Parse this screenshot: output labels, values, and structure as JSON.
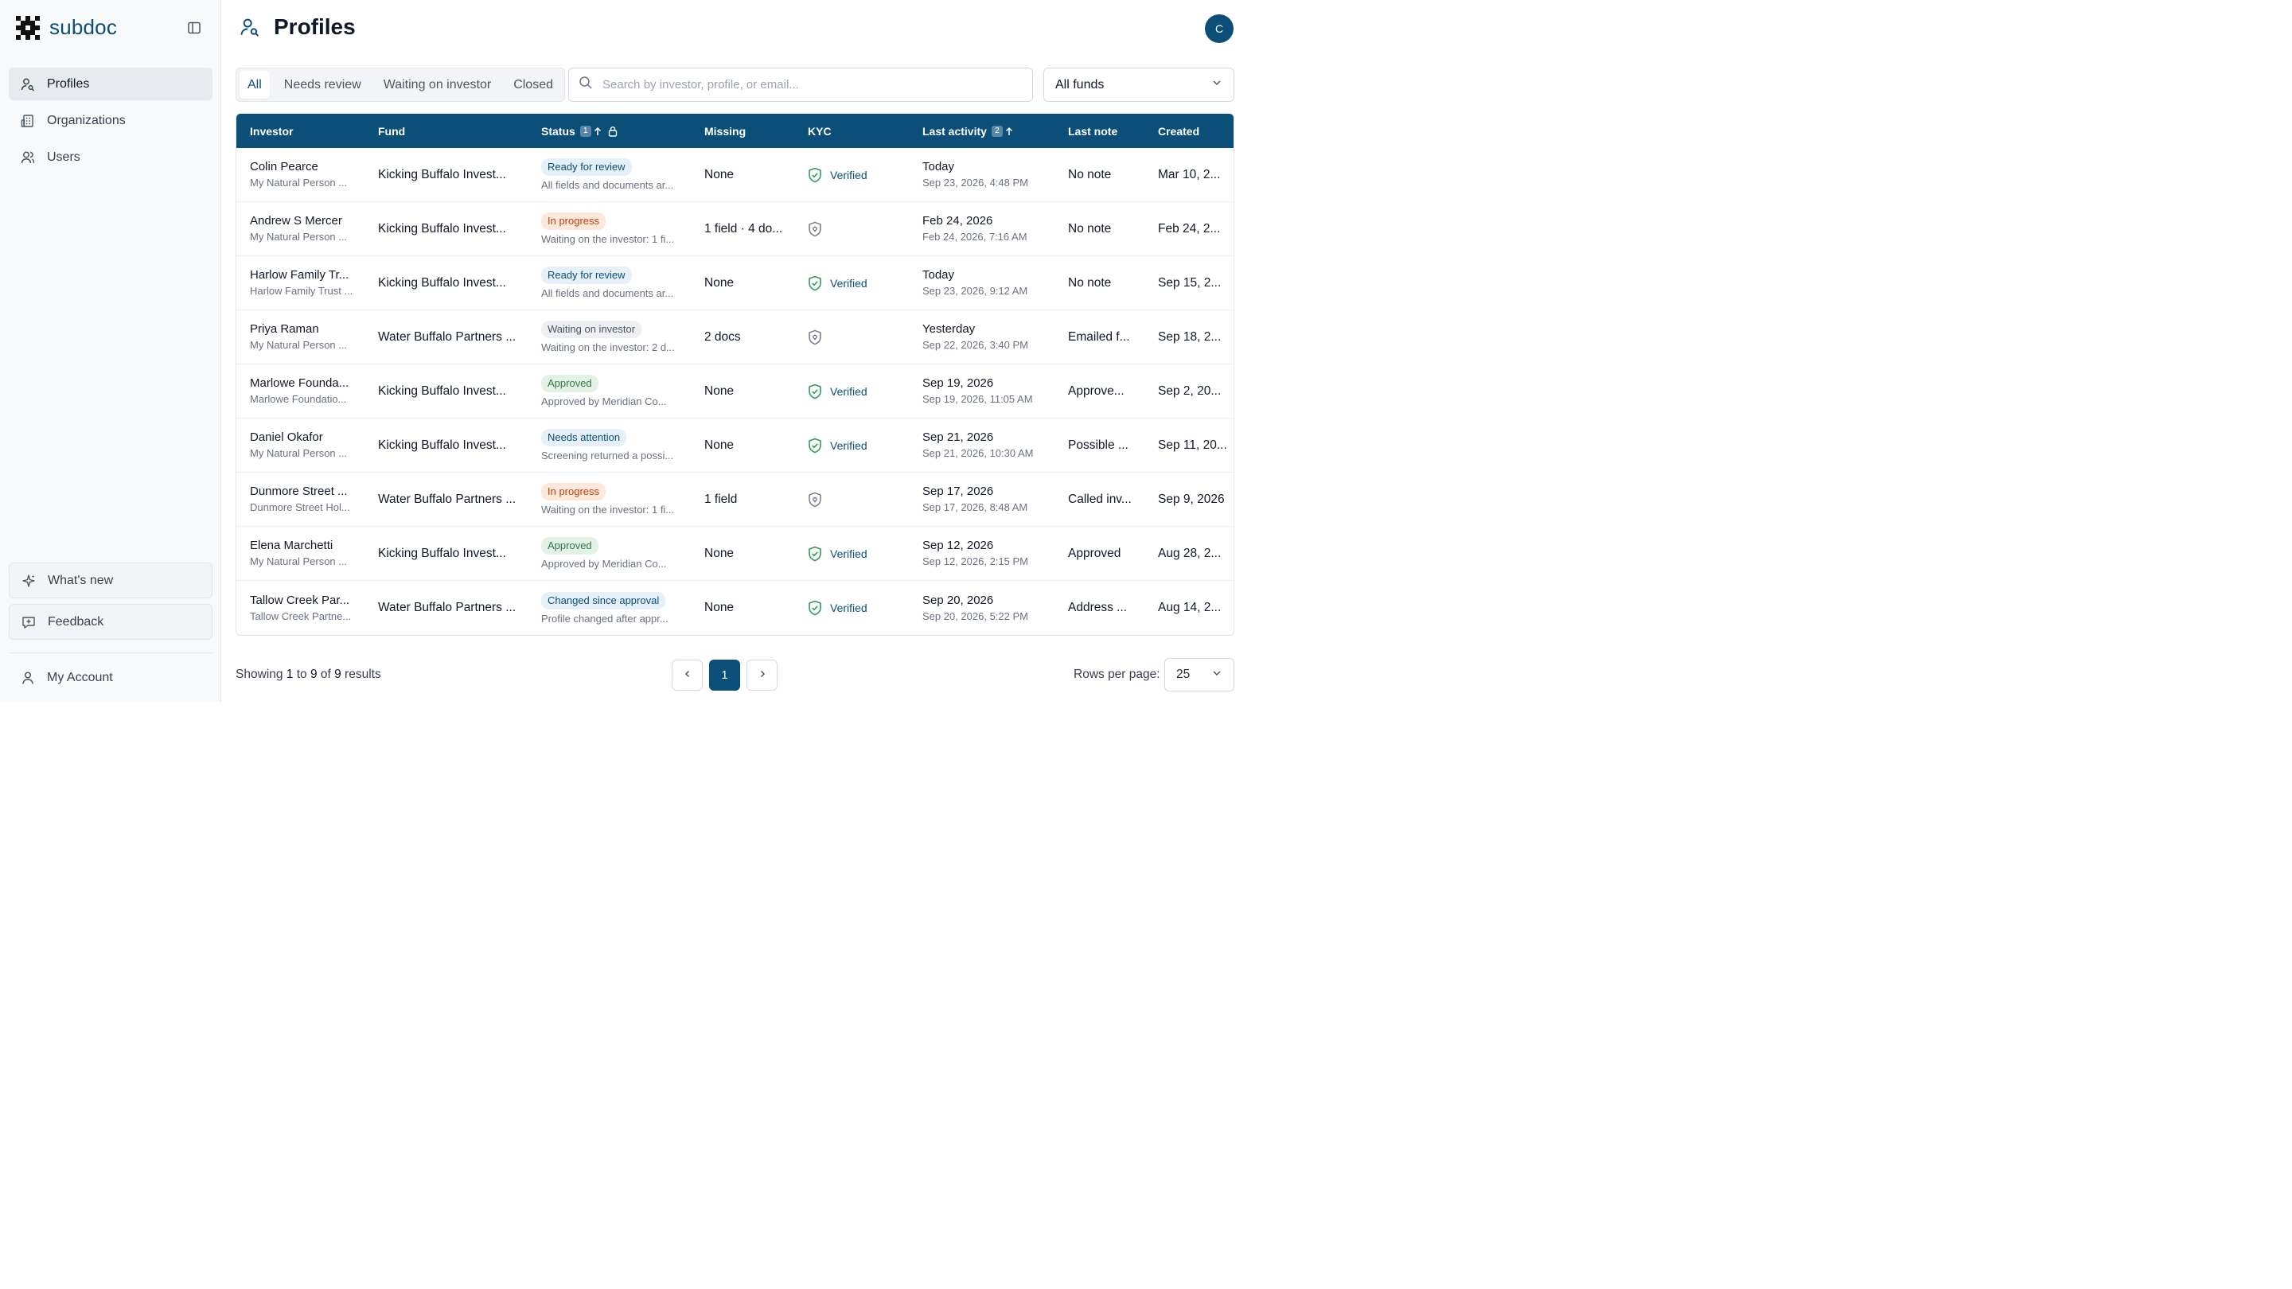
{
  "app": {
    "name": "subdoc"
  },
  "sidebar": {
    "items": [
      {
        "label": "Profiles",
        "icon": "profiles-icon",
        "active": true
      },
      {
        "label": "Organizations",
        "icon": "building-icon",
        "active": false
      },
      {
        "label": "Users",
        "icon": "users-icon",
        "active": false
      }
    ],
    "whats_new": "What's new",
    "feedback": "Feedback",
    "account": "My Account"
  },
  "header": {
    "title": "Profiles",
    "avatar_initial": "C"
  },
  "tabs": [
    {
      "label": "All",
      "active": true
    },
    {
      "label": "Needs review",
      "active": false
    },
    {
      "label": "Waiting on investor",
      "active": false
    },
    {
      "label": "Closed",
      "active": false
    }
  ],
  "search": {
    "placeholder": "Search by investor, profile, or email..."
  },
  "fund_filter": {
    "value": "All funds"
  },
  "table": {
    "columns": {
      "investor": "Investor",
      "fund": "Fund",
      "status": "Status",
      "status_sort": "1",
      "missing": "Missing",
      "kyc": "KYC",
      "last_activity": "Last activity",
      "last_activity_sort": "2",
      "last_note": "Last note",
      "created": "Created"
    },
    "rows": [
      {
        "investor": "Colin Pearce",
        "profile": "My Natural Person ...",
        "fund": "Kicking Buffalo Invest...",
        "status": "Ready for review",
        "status_color": "blue",
        "status_sub": "All fields and documents ar...",
        "missing": "None",
        "kyc_verified": true,
        "kyc": "Verified",
        "activity": "Today",
        "activity_sub": "Sep 23, 2026, 4:48 PM",
        "note": "No note",
        "created": "Mar 10, 2..."
      },
      {
        "investor": "Andrew S Mercer",
        "profile": "My Natural Person ...",
        "fund": "Kicking Buffalo Invest...",
        "status": "In progress",
        "status_color": "orange",
        "status_sub": "Waiting on the investor: 1 fi...",
        "missing": "1 field · 4 do...",
        "kyc_verified": false,
        "kyc": "",
        "activity": "Feb 24, 2026",
        "activity_sub": "Feb 24, 2026, 7:16 AM",
        "note": "No note",
        "created": "Feb 24, 2..."
      },
      {
        "investor": "Harlow Family Tr...",
        "profile": "Harlow Family Trust ...",
        "fund": "Kicking Buffalo Invest...",
        "status": "Ready for review",
        "status_color": "blue",
        "status_sub": "All fields and documents ar...",
        "missing": "None",
        "kyc_verified": true,
        "kyc": "Verified",
        "activity": "Today",
        "activity_sub": "Sep 23, 2026, 9:12 AM",
        "note": "No note",
        "created": "Sep 15, 2..."
      },
      {
        "investor": "Priya Raman",
        "profile": "My Natural Person ...",
        "fund": "Water Buffalo Partners ...",
        "status": "Waiting on investor",
        "status_color": "gray",
        "status_sub": "Waiting on the investor: 2 d...",
        "missing": "2 docs",
        "kyc_verified": false,
        "kyc": "",
        "activity": "Yesterday",
        "activity_sub": "Sep 22, 2026, 3:40 PM",
        "note": "Emailed f...",
        "created": "Sep 18, 2..."
      },
      {
        "investor": "Marlowe Founda...",
        "profile": "Marlowe Foundatio...",
        "fund": "Kicking Buffalo Invest...",
        "status": "Approved",
        "status_color": "green",
        "status_sub": "Approved by Meridian Co...",
        "missing": "None",
        "kyc_verified": true,
        "kyc": "Verified",
        "activity": "Sep 19, 2026",
        "activity_sub": "Sep 19, 2026, 11:05 AM",
        "note": "Approve...",
        "created": "Sep 2, 20..."
      },
      {
        "investor": "Daniel Okafor",
        "profile": "My Natural Person ...",
        "fund": "Kicking Buffalo Invest...",
        "status": "Needs attention",
        "status_color": "blue",
        "status_sub": "Screening returned a possi...",
        "missing": "None",
        "kyc_verified": true,
        "kyc": "Verified",
        "activity": "Sep 21, 2026",
        "activity_sub": "Sep 21, 2026, 10:30 AM",
        "note": "Possible ...",
        "created": "Sep 11, 20..."
      },
      {
        "investor": "Dunmore Street ...",
        "profile": "Dunmore Street Hol...",
        "fund": "Water Buffalo Partners ...",
        "status": "In progress",
        "status_color": "orange",
        "status_sub": "Waiting on the investor: 1 fi...",
        "missing": "1 field",
        "kyc_verified": false,
        "kyc": "",
        "activity": "Sep 17, 2026",
        "activity_sub": "Sep 17, 2026, 8:48 AM",
        "note": "Called inv...",
        "created": "Sep 9, 2026"
      },
      {
        "investor": "Elena Marchetti",
        "profile": "My Natural Person ...",
        "fund": "Kicking Buffalo Invest...",
        "status": "Approved",
        "status_color": "green",
        "status_sub": "Approved by Meridian Co...",
        "missing": "None",
        "kyc_verified": true,
        "kyc": "Verified",
        "activity": "Sep 12, 2026",
        "activity_sub": "Sep 12, 2026, 2:15 PM",
        "note": "Approved",
        "created": "Aug 28, 2..."
      },
      {
        "investor": "Tallow Creek Par...",
        "profile": "Tallow Creek Partne...",
        "fund": "Water Buffalo Partners ...",
        "status": "Changed since approval",
        "status_color": "blue",
        "status_sub": "Profile changed after appr...",
        "missing": "None",
        "kyc_verified": true,
        "kyc": "Verified",
        "activity": "Sep 20, 2026",
        "activity_sub": "Sep 20, 2026, 5:22 PM",
        "note": "Address ...",
        "created": "Aug 14, 2..."
      }
    ]
  },
  "footer": {
    "showing_prefix": "Showing ",
    "from": "1",
    "to_word": " to ",
    "to": "9",
    "of_word": " of ",
    "total": "9",
    "results_word": " results",
    "current_page": "1",
    "rows_label": "Rows per page:",
    "rows_value": "25"
  },
  "colors": {
    "brand": "#0b4f79",
    "verified": "#2f9d57"
  }
}
